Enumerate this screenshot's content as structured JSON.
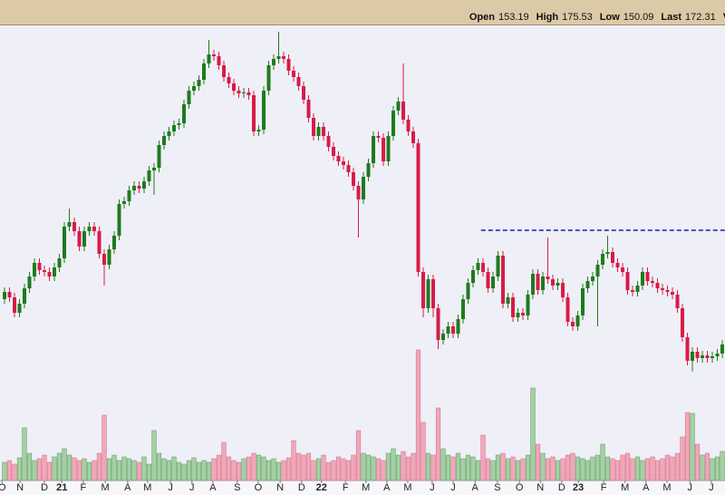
{
  "header": {
    "fields": [
      {
        "label": "Open",
        "value": 153.19
      },
      {
        "label": "High",
        "value": 175.53
      },
      {
        "label": "Low",
        "value": 150.09
      },
      {
        "label": "Last",
        "value": 172.31
      },
      {
        "label": "Vol"
      }
    ]
  },
  "chart_data": {
    "type": "candlestick",
    "up_color": "#1e7b1e",
    "down_color": "#d81b4a",
    "volume_up_color": "#a3d0a3",
    "volume_down_color": "#f2a6b8",
    "xlim": [
      -0.909,
      144.545
    ],
    "ylim": [
      0,
      518
    ],
    "vlim": [
      0,
      150
    ],
    "xticks": [
      {
        "value": -0.5,
        "label": "O"
      },
      {
        "value": 3.1,
        "label": "N"
      },
      {
        "value": 8,
        "label": "D"
      },
      {
        "value": 11.5,
        "label": "21"
      },
      {
        "value": 15.8,
        "label": "F"
      },
      {
        "value": 20.2,
        "label": "M"
      },
      {
        "value": 24.7,
        "label": "A"
      },
      {
        "value": 28.7,
        "label": "M"
      },
      {
        "value": 33.3,
        "label": "J"
      },
      {
        "value": 37.6,
        "label": "J"
      },
      {
        "value": 41.8,
        "label": "A"
      },
      {
        "value": 46.7,
        "label": "S"
      },
      {
        "value": 50.9,
        "label": "O"
      },
      {
        "value": 55.3,
        "label": "N"
      },
      {
        "value": 59.6,
        "label": "D"
      },
      {
        "value": 63.6,
        "label": "22"
      },
      {
        "value": 68.4,
        "label": "F"
      },
      {
        "value": 72.5,
        "label": "M"
      },
      {
        "value": 76.7,
        "label": "A"
      },
      {
        "value": 80.9,
        "label": "M"
      },
      {
        "value": 85.8,
        "label": "J"
      },
      {
        "value": 90,
        "label": "J"
      },
      {
        "value": 94.4,
        "label": "A"
      },
      {
        "value": 98.9,
        "label": "S"
      },
      {
        "value": 103.3,
        "label": "O"
      },
      {
        "value": 107.5,
        "label": "N"
      },
      {
        "value": 111.8,
        "label": "D"
      },
      {
        "value": 115.1,
        "label": "23"
      },
      {
        "value": 120.2,
        "label": "F"
      },
      {
        "value": 124.5,
        "label": "M"
      },
      {
        "value": 128.7,
        "label": "A"
      },
      {
        "value": 132.9,
        "label": "M"
      },
      {
        "value": 137.5,
        "label": "J"
      },
      {
        "value": 141.8,
        "label": "J"
      }
    ],
    "resistance": {
      "value": 292,
      "start": 95.6,
      "color": "#1a1aa8"
    },
    "open": [
      216,
      224,
      218,
      201,
      211,
      228,
      241,
      256,
      248,
      246,
      241,
      251,
      261,
      296,
      301,
      291,
      274,
      291,
      296,
      291,
      266,
      254,
      271,
      286,
      321,
      324,
      336,
      341,
      338,
      346,
      358,
      361,
      386,
      396,
      401,
      408,
      410,
      431,
      446,
      451,
      458,
      476,
      486,
      484,
      474,
      461,
      454,
      446,
      443,
      444,
      441,
      401,
      403,
      446,
      474,
      481,
      484,
      481,
      468,
      461,
      451,
      436,
      416,
      396,
      406,
      396,
      384,
      374,
      368,
      364,
      356,
      341,
      326,
      351,
      366,
      396,
      394,
      368,
      396,
      424,
      434,
      414,
      401,
      388,
      246,
      206,
      238,
      206,
      171,
      178,
      186,
      178,
      194,
      216,
      234,
      248,
      256,
      246,
      228,
      241,
      264,
      211,
      218,
      196,
      201,
      198,
      221,
      244,
      226,
      241,
      238,
      231,
      234,
      218,
      191,
      186,
      198,
      228,
      236,
      241,
      254,
      266,
      268,
      256,
      251,
      246,
      226,
      224,
      231,
      246,
      236,
      234,
      228,
      226,
      224,
      221,
      206,
      174,
      148,
      158,
      151,
      154,
      151,
      153,
      156
    ],
    "high": [
      229,
      229,
      223,
      216,
      233,
      246,
      261,
      261,
      253,
      251,
      256,
      266,
      301,
      316,
      306,
      296,
      296,
      301,
      301,
      296,
      271,
      276,
      291,
      326,
      329,
      341,
      346,
      346,
      351,
      363,
      366,
      391,
      401,
      406,
      413,
      415,
      436,
      451,
      456,
      463,
      481,
      502,
      491,
      489,
      479,
      466,
      459,
      451,
      449,
      449,
      446,
      408,
      451,
      479,
      486,
      511,
      489,
      486,
      473,
      466,
      456,
      441,
      421,
      411,
      411,
      401,
      389,
      379,
      373,
      369,
      361,
      346,
      356,
      371,
      401,
      401,
      399,
      401,
      429,
      439,
      476,
      419,
      406,
      393,
      251,
      243,
      243,
      211,
      183,
      191,
      191,
      199,
      221,
      239,
      253,
      261,
      261,
      251,
      246,
      269,
      269,
      223,
      223,
      206,
      206,
      226,
      249,
      249,
      246,
      284,
      243,
      239,
      239,
      223,
      196,
      203,
      233,
      241,
      246,
      259,
      271,
      286,
      273,
      261,
      256,
      251,
      231,
      236,
      251,
      251,
      241,
      239,
      233,
      231,
      229,
      226,
      211,
      179,
      163,
      163,
      159,
      159,
      158,
      161,
      171
    ],
    "low": [
      211,
      213,
      196,
      196,
      206,
      223,
      236,
      243,
      241,
      236,
      236,
      246,
      256,
      291,
      286,
      269,
      269,
      286,
      286,
      261,
      231,
      249,
      266,
      281,
      316,
      319,
      331,
      333,
      333,
      341,
      331,
      356,
      381,
      391,
      396,
      403,
      405,
      426,
      441,
      446,
      453,
      471,
      479,
      469,
      456,
      449,
      441,
      438,
      438,
      436,
      396,
      396,
      398,
      441,
      469,
      476,
      476,
      463,
      456,
      446,
      431,
      411,
      391,
      391,
      391,
      379,
      369,
      363,
      359,
      351,
      336,
      284,
      321,
      346,
      361,
      389,
      363,
      363,
      391,
      419,
      409,
      396,
      383,
      241,
      196,
      201,
      196,
      161,
      166,
      173,
      173,
      173,
      189,
      211,
      229,
      243,
      241,
      223,
      223,
      236,
      206,
      206,
      191,
      191,
      193,
      193,
      216,
      221,
      221,
      233,
      226,
      226,
      213,
      186,
      181,
      181,
      193,
      223,
      231,
      186,
      249,
      261,
      251,
      246,
      241,
      221,
      219,
      219,
      226,
      231,
      229,
      223,
      221,
      219,
      216,
      201,
      169,
      143,
      136,
      146,
      146,
      146,
      146,
      148,
      151
    ],
    "close": [
      224,
      218,
      201,
      211,
      228,
      241,
      256,
      248,
      246,
      241,
      251,
      261,
      296,
      301,
      291,
      274,
      291,
      296,
      291,
      266,
      254,
      271,
      286,
      321,
      324,
      336,
      341,
      338,
      346,
      358,
      361,
      386,
      396,
      401,
      408,
      410,
      431,
      446,
      451,
      458,
      476,
      486,
      484,
      474,
      461,
      454,
      446,
      443,
      444,
      441,
      401,
      403,
      446,
      474,
      481,
      484,
      481,
      468,
      461,
      451,
      436,
      416,
      396,
      406,
      396,
      384,
      374,
      368,
      364,
      356,
      341,
      326,
      351,
      366,
      396,
      394,
      368,
      396,
      424,
      434,
      414,
      401,
      388,
      246,
      206,
      238,
      206,
      171,
      178,
      186,
      178,
      194,
      216,
      234,
      248,
      256,
      246,
      228,
      241,
      264,
      211,
      218,
      196,
      201,
      198,
      221,
      244,
      226,
      241,
      238,
      231,
      234,
      218,
      191,
      186,
      198,
      228,
      236,
      241,
      254,
      266,
      268,
      256,
      251,
      246,
      226,
      224,
      231,
      246,
      236,
      234,
      228,
      226,
      224,
      221,
      206,
      174,
      148,
      158,
      151,
      154,
      151,
      153,
      156,
      166
    ],
    "volume": [
      20,
      22,
      18,
      25,
      58,
      30,
      22,
      24,
      28,
      20,
      26,
      30,
      35,
      28,
      25,
      22,
      24,
      20,
      22,
      30,
      72,
      24,
      28,
      22,
      26,
      24,
      22,
      20,
      26,
      18,
      55,
      30,
      24,
      22,
      26,
      20,
      18,
      22,
      25,
      20,
      22,
      20,
      24,
      28,
      42,
      26,
      22,
      20,
      24,
      26,
      30,
      28,
      26,
      22,
      24,
      20,
      22,
      25,
      44,
      30,
      28,
      30,
      22,
      24,
      28,
      20,
      22,
      26,
      24,
      22,
      28,
      55,
      30,
      28,
      26,
      24,
      22,
      30,
      35,
      28,
      32,
      26,
      30,
      144,
      64,
      30,
      28,
      80,
      35,
      28,
      26,
      30,
      24,
      28,
      26,
      22,
      50,
      24,
      22,
      28,
      30,
      24,
      26,
      22,
      24,
      28,
      102,
      40,
      30,
      24,
      26,
      22,
      24,
      28,
      30,
      26,
      24,
      22,
      26,
      28,
      40,
      26,
      24,
      22,
      28,
      30,
      24,
      26,
      22,
      24,
      26,
      22,
      24,
      28,
      26,
      30,
      48,
      75,
      74,
      40,
      28,
      30,
      24,
      26,
      32
    ]
  }
}
